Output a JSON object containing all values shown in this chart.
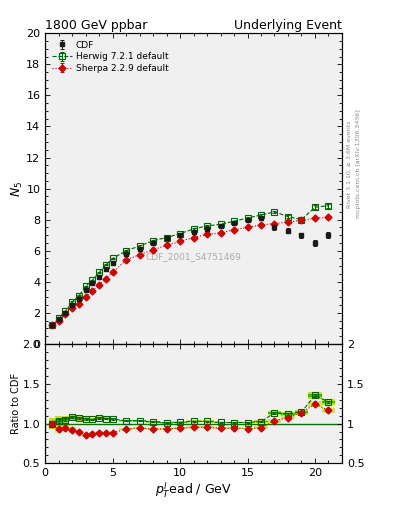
{
  "title_left": "1800 GeV ppbar",
  "title_right": "Underlying Event",
  "ylabel_main": "$N_5$",
  "ylabel_ratio": "Ratio to CDF",
  "xlabel": "$p_T^l\\mathrm{ead}$ / GeV",
  "right_label_top": "Rivet 3.1.10, ≥ 3.6M events",
  "right_label_bot": "mcplots.cern.ch [arXiv:1306.3436]",
  "watermark": "CDF_2001_S4751469",
  "xlim": [
    0,
    22
  ],
  "ylim_main": [
    0,
    20
  ],
  "ylim_ratio": [
    0.5,
    2.0
  ],
  "cdf_x": [
    0.5,
    1.0,
    1.5,
    2.0,
    2.5,
    3.0,
    3.5,
    4.0,
    4.5,
    5.0,
    6.0,
    7.0,
    8.0,
    9.0,
    10.0,
    11.0,
    12.0,
    13.0,
    14.0,
    15.0,
    16.0,
    17.0,
    18.0,
    19.0,
    20.0,
    21.0
  ],
  "cdf_y": [
    1.2,
    1.6,
    2.0,
    2.5,
    2.9,
    3.5,
    3.9,
    4.3,
    4.8,
    5.2,
    5.8,
    6.1,
    6.5,
    6.8,
    7.0,
    7.2,
    7.4,
    7.6,
    7.8,
    8.0,
    8.1,
    7.5,
    7.3,
    7.0,
    6.5,
    7.0
  ],
  "cdf_yerr": [
    0.08,
    0.08,
    0.08,
    0.08,
    0.08,
    0.08,
    0.08,
    0.08,
    0.08,
    0.08,
    0.08,
    0.08,
    0.08,
    0.08,
    0.08,
    0.08,
    0.08,
    0.08,
    0.08,
    0.08,
    0.15,
    0.15,
    0.15,
    0.15,
    0.2,
    0.2
  ],
  "herwig_x": [
    0.5,
    1.0,
    1.5,
    2.0,
    2.5,
    3.0,
    3.5,
    4.0,
    4.5,
    5.0,
    6.0,
    7.0,
    8.0,
    9.0,
    10.0,
    11.0,
    12.0,
    13.0,
    14.0,
    15.0,
    16.0,
    17.0,
    18.0,
    19.0,
    20.0,
    21.0
  ],
  "herwig_y": [
    1.2,
    1.65,
    2.1,
    2.7,
    3.1,
    3.7,
    4.1,
    4.6,
    5.1,
    5.5,
    6.0,
    6.3,
    6.65,
    6.85,
    7.1,
    7.4,
    7.6,
    7.7,
    7.9,
    8.1,
    8.3,
    8.5,
    8.2,
    8.0,
    8.8,
    8.9
  ],
  "herwig_yerr": [
    0.04,
    0.04,
    0.04,
    0.04,
    0.04,
    0.04,
    0.04,
    0.04,
    0.04,
    0.04,
    0.04,
    0.04,
    0.04,
    0.04,
    0.04,
    0.04,
    0.04,
    0.04,
    0.04,
    0.04,
    0.08,
    0.08,
    0.08,
    0.08,
    0.12,
    0.12
  ],
  "sherpa_x": [
    0.5,
    1.0,
    1.5,
    2.0,
    2.5,
    3.0,
    3.5,
    4.0,
    4.5,
    5.0,
    6.0,
    7.0,
    8.0,
    9.0,
    10.0,
    11.0,
    12.0,
    13.0,
    14.0,
    15.0,
    16.0,
    17.0,
    18.0,
    19.0,
    20.0,
    21.0
  ],
  "sherpa_y": [
    1.2,
    1.5,
    1.9,
    2.3,
    2.6,
    3.0,
    3.4,
    3.8,
    4.2,
    4.6,
    5.4,
    5.75,
    6.05,
    6.35,
    6.6,
    6.85,
    7.05,
    7.15,
    7.35,
    7.5,
    7.65,
    7.75,
    7.85,
    7.95,
    8.1,
    8.15
  ],
  "sherpa_yerr": [
    0.04,
    0.04,
    0.04,
    0.04,
    0.04,
    0.04,
    0.04,
    0.04,
    0.04,
    0.04,
    0.04,
    0.04,
    0.04,
    0.04,
    0.04,
    0.04,
    0.04,
    0.04,
    0.04,
    0.04,
    0.06,
    0.06,
    0.06,
    0.08,
    0.08,
    0.08
  ],
  "cdf_color": "#1a1a1a",
  "herwig_color": "#006400",
  "sherpa_color": "#CC0000",
  "herwig_band_inner_color": "#00AA00",
  "herwig_band_outer_color": "#BBDD00",
  "legend_labels": [
    "CDF",
    "Herwig 7.2.1 default",
    "Sherpa 2.2.9 default"
  ],
  "xticks": [
    0,
    5,
    10,
    15,
    20
  ],
  "yticks_main": [
    0,
    2,
    4,
    6,
    8,
    10,
    12,
    14,
    16,
    18,
    20
  ],
  "yticks_ratio": [
    0.5,
    1.0,
    1.5,
    2.0
  ],
  "bg_color": "#f0f0f0"
}
